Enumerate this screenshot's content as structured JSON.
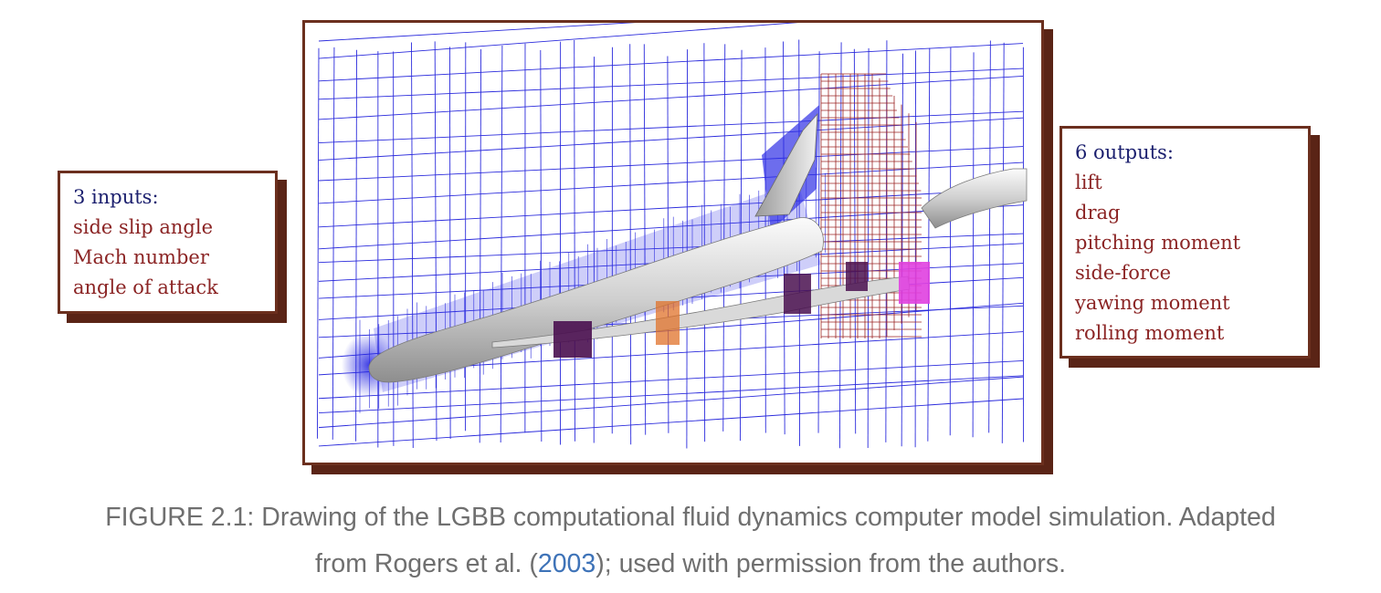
{
  "inputs": {
    "heading": "3 inputs:",
    "items": [
      "side slip angle",
      "Mach number",
      "angle of attack"
    ]
  },
  "outputs": {
    "heading": "6 outputs:",
    "items": [
      "lift",
      "drag",
      "pitching moment",
      "side-force",
      "yawing moment",
      "rolling moment"
    ]
  },
  "caption": {
    "prefix": "FIGURE 2.1: Drawing of the LGBB computational fluid dynamics computer model simulation. Adapted",
    "line2_before": "from Rogers et al. (",
    "citation_year": "2003",
    "line2_after": "); used with permission from the authors."
  },
  "colors": {
    "frame": "#6b2f1e",
    "mesh": "#2b2bdc",
    "refined_mesh": "#9b2424",
    "heading_text": "#1b1f6e",
    "item_text": "#8b2424",
    "citation_link": "#3e73b8"
  }
}
